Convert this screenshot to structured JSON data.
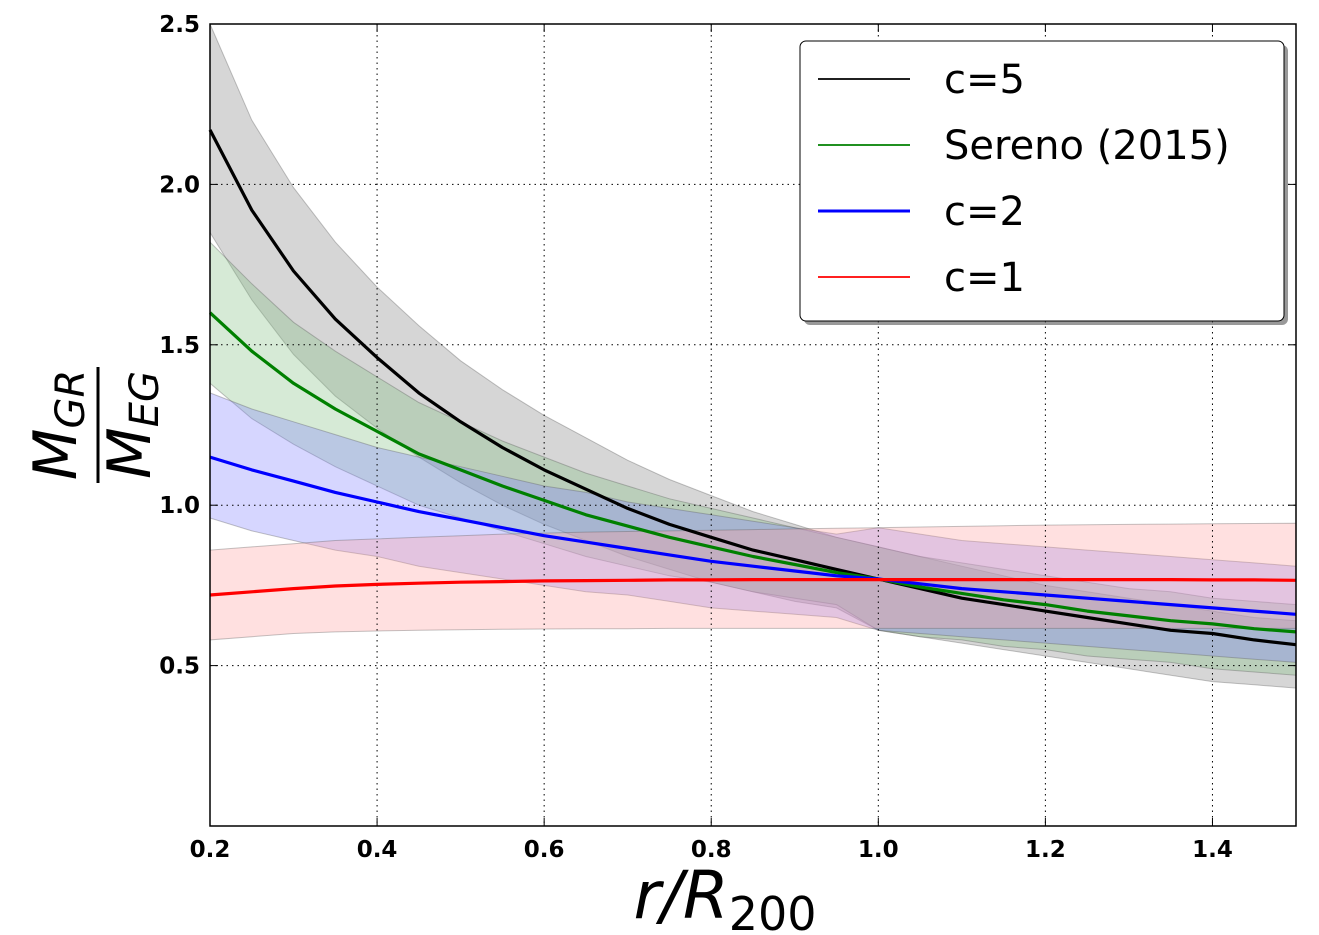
{
  "chart_data": {
    "type": "line",
    "title": "",
    "xlabel": {
      "main": "r/R",
      "sub": "200"
    },
    "ylabel": {
      "numerator": "M",
      "numerator_sub": "GR",
      "denominator": "M",
      "denominator_sub": "EG"
    },
    "xlim": [
      0.2,
      1.5
    ],
    "ylim": [
      0.0,
      2.5
    ],
    "xticks": [
      0.2,
      0.4,
      0.6,
      0.8,
      1.0,
      1.2,
      1.4
    ],
    "xtick_labels": [
      "0.2",
      "0.4",
      "0.6",
      "0.8",
      "1.0",
      "1.2",
      "1.4"
    ],
    "yticks": [
      0.5,
      1.0,
      1.5,
      2.0,
      2.5
    ],
    "ytick_labels": [
      "0.5",
      "1.0",
      "1.5",
      "2.0",
      "2.5"
    ],
    "grid": true,
    "legend_position": "top-right",
    "x": [
      0.2,
      0.25,
      0.3,
      0.35,
      0.4,
      0.45,
      0.5,
      0.55,
      0.6,
      0.65,
      0.7,
      0.75,
      0.8,
      0.85,
      0.9,
      0.95,
      1.0,
      1.05,
      1.1,
      1.15,
      1.2,
      1.25,
      1.3,
      1.35,
      1.4,
      1.45,
      1.5
    ],
    "series": [
      {
        "name": "c=5",
        "color": "#000000",
        "band_color": "#808080",
        "values": [
          2.17,
          1.92,
          1.73,
          1.58,
          1.46,
          1.35,
          1.26,
          1.18,
          1.11,
          1.05,
          0.99,
          0.94,
          0.9,
          0.86,
          0.83,
          0.8,
          0.77,
          0.74,
          0.71,
          0.69,
          0.67,
          0.65,
          0.63,
          0.61,
          0.6,
          0.58,
          0.565
        ],
        "upper": [
          2.5,
          2.2,
          1.99,
          1.82,
          1.68,
          1.56,
          1.45,
          1.36,
          1.28,
          1.21,
          1.14,
          1.08,
          1.03,
          0.98,
          0.94,
          0.9,
          0.87,
          0.84,
          0.81,
          0.78,
          0.75,
          0.73,
          0.71,
          0.69,
          0.67,
          0.65,
          0.64
        ],
        "lower": [
          1.85,
          1.64,
          1.47,
          1.34,
          1.24,
          1.15,
          1.07,
          1.0,
          0.94,
          0.89,
          0.84,
          0.8,
          0.76,
          0.73,
          0.7,
          0.68,
          0.61,
          0.59,
          0.57,
          0.55,
          0.53,
          0.51,
          0.49,
          0.47,
          0.45,
          0.44,
          0.43
        ]
      },
      {
        "name": "Sereno (2015)",
        "color": "#008000",
        "band_color": "#7fbf7f",
        "values": [
          1.6,
          1.48,
          1.38,
          1.3,
          1.23,
          1.16,
          1.11,
          1.06,
          1.015,
          0.97,
          0.935,
          0.9,
          0.87,
          0.84,
          0.815,
          0.79,
          0.77,
          0.745,
          0.725,
          0.705,
          0.69,
          0.67,
          0.655,
          0.64,
          0.63,
          0.615,
          0.605
        ],
        "upper": [
          1.82,
          1.69,
          1.57,
          1.48,
          1.4,
          1.32,
          1.26,
          1.2,
          1.15,
          1.1,
          1.06,
          1.02,
          0.99,
          0.96,
          0.93,
          0.9,
          0.87,
          0.84,
          0.82,
          0.8,
          0.78,
          0.76,
          0.74,
          0.73,
          0.71,
          0.7,
          0.69
        ],
        "lower": [
          1.38,
          1.27,
          1.19,
          1.12,
          1.06,
          1.0,
          0.96,
          0.92,
          0.88,
          0.84,
          0.81,
          0.78,
          0.76,
          0.73,
          0.71,
          0.69,
          0.61,
          0.59,
          0.58,
          0.56,
          0.55,
          0.53,
          0.52,
          0.51,
          0.49,
          0.48,
          0.47
        ]
      },
      {
        "name": "c=2",
        "color": "#0000ff",
        "band_color": "#7f7fff",
        "values": [
          1.15,
          1.11,
          1.075,
          1.04,
          1.01,
          0.98,
          0.955,
          0.93,
          0.905,
          0.885,
          0.865,
          0.845,
          0.825,
          0.81,
          0.795,
          0.78,
          0.77,
          0.755,
          0.74,
          0.73,
          0.72,
          0.71,
          0.7,
          0.69,
          0.68,
          0.67,
          0.66
        ],
        "upper": [
          1.35,
          1.3,
          1.26,
          1.22,
          1.18,
          1.15,
          1.12,
          1.09,
          1.06,
          1.04,
          1.01,
          0.99,
          0.97,
          0.95,
          0.93,
          0.91,
          0.93,
          0.91,
          0.89,
          0.88,
          0.87,
          0.86,
          0.85,
          0.84,
          0.83,
          0.82,
          0.81
        ],
        "lower": [
          0.96,
          0.92,
          0.89,
          0.86,
          0.84,
          0.81,
          0.79,
          0.77,
          0.75,
          0.73,
          0.72,
          0.7,
          0.68,
          0.67,
          0.66,
          0.65,
          0.61,
          0.6,
          0.59,
          0.58,
          0.57,
          0.56,
          0.55,
          0.54,
          0.53,
          0.52,
          0.51
        ]
      },
      {
        "name": "c=1",
        "color": "#ff0000",
        "band_color": "#ff9f9f",
        "values": [
          0.72,
          0.73,
          0.74,
          0.748,
          0.753,
          0.757,
          0.76,
          0.762,
          0.764,
          0.765,
          0.766,
          0.767,
          0.767,
          0.768,
          0.768,
          0.768,
          0.768,
          0.768,
          0.768,
          0.768,
          0.768,
          0.768,
          0.768,
          0.768,
          0.767,
          0.767,
          0.766
        ],
        "upper": [
          0.86,
          0.87,
          0.88,
          0.89,
          0.895,
          0.9,
          0.905,
          0.91,
          0.913,
          0.916,
          0.918,
          0.92,
          0.922,
          0.924,
          0.926,
          0.928,
          0.93,
          0.932,
          0.934,
          0.936,
          0.938,
          0.939,
          0.94,
          0.941,
          0.942,
          0.943,
          0.944
        ],
        "lower": [
          0.58,
          0.59,
          0.6,
          0.605,
          0.608,
          0.61,
          0.612,
          0.613,
          0.614,
          0.615,
          0.615,
          0.616,
          0.616,
          0.616,
          0.616,
          0.616,
          0.616,
          0.616,
          0.616,
          0.616,
          0.616,
          0.616,
          0.616,
          0.616,
          0.616,
          0.616,
          0.616
        ]
      }
    ]
  }
}
